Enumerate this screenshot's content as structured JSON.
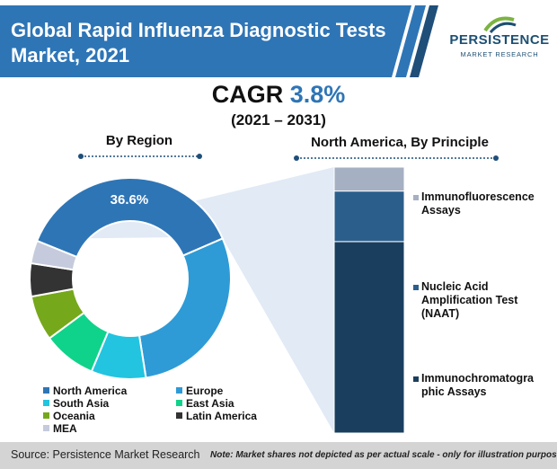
{
  "title": "Global Rapid Influenza Diagnostic Tests Market, 2021",
  "logo": {
    "name": "PERSISTENCE",
    "sub": "MARKET RESEARCH"
  },
  "cagr": {
    "label": "CAGR",
    "value": "3.8%",
    "years": "(2021 – 2031)"
  },
  "colors": {
    "banner": "#2e75b6",
    "banner_accent": "#1f4e79",
    "north_america": "#2e75b6",
    "europe": "#2e9bd6",
    "south_asia": "#22c4e0",
    "east_asia": "#0fd38a",
    "oceania": "#76a81b",
    "latin_america": "#333333",
    "mea": "#c5cbdc",
    "immunofluorescence": "#a6b0c3",
    "naat": "#2c5e8c",
    "immunochromatographic": "#1a3f5e"
  },
  "chart_data": [
    {
      "type": "pie",
      "variant": "donut",
      "title": "By Region",
      "data_labels": [
        "36.6%"
      ],
      "categories": [
        "North America",
        "Europe",
        "South Asia",
        "East Asia",
        "Oceania",
        "Latin America",
        "MEA"
      ],
      "values": [
        36.6,
        28.4,
        8.6,
        8.4,
        7.1,
        5.2,
        3.6
      ],
      "legend": [
        "North America",
        "Europe",
        "South Asia",
        "East Asia",
        "Oceania",
        "Latin America",
        "MEA"
      ],
      "legend_position": "bottom"
    },
    {
      "type": "bar",
      "variant": "stacked-100",
      "title": "North America, By Principle",
      "categories": [
        "Immunochromatographic Assays",
        "Nucleic Acid Amplification Test (NAAT)",
        "Immunofluorescence Assays"
      ],
      "labels": [
        "Immunochromatogra phic Assays",
        "Nucleic Acid Amplification Test (NAAT)",
        "Immunofluorescence Assays"
      ],
      "values": [
        72,
        19,
        9
      ],
      "legend_position": "right"
    }
  ],
  "footer": {
    "source": "Source: Persistence Market Research",
    "note": "Note: Market shares not depicted as per actual scale - only for illustration purposes"
  }
}
